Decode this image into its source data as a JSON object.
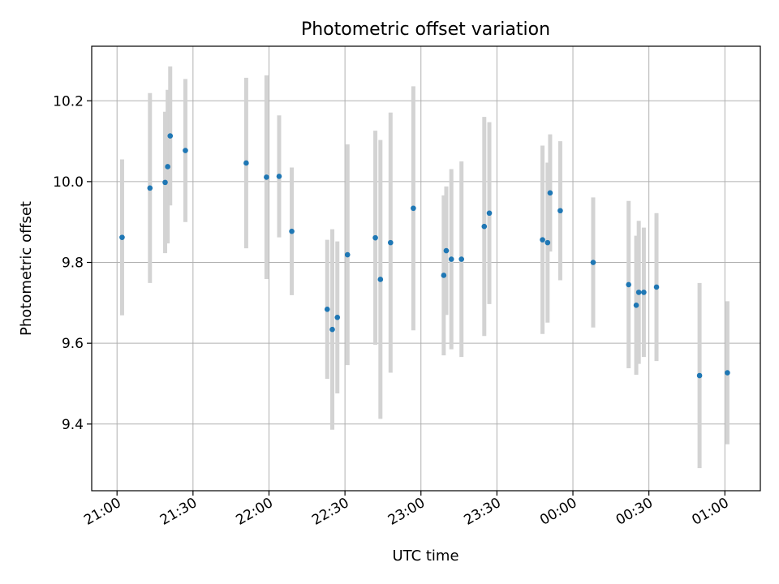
{
  "chart_data": {
    "type": "scatter",
    "title": "Photometric offset variation",
    "xlabel": "UTC time",
    "ylabel": "Photometric offset",
    "x_axis_type": "time",
    "x_range": [
      "20:50",
      "01:14"
    ],
    "x_ticks": [
      "21:00",
      "21:30",
      "22:00",
      "22:30",
      "23:00",
      "23:30",
      "00:00",
      "00:30",
      "01:00"
    ],
    "ylim": [
      9.235,
      10.335
    ],
    "y_ticks": [
      9.4,
      9.6,
      9.8,
      10.0,
      10.2
    ],
    "grid": true,
    "legend": "none",
    "marker_color": "#1f77b4",
    "errorbar_color": "#d3d3d3",
    "points": [
      {
        "time": "21:02",
        "y": 9.862,
        "err": 0.193
      },
      {
        "time": "21:13",
        "y": 9.984,
        "err": 0.235
      },
      {
        "time": "21:19",
        "y": 9.998,
        "err": 0.175
      },
      {
        "time": "21:20",
        "y": 10.037,
        "err": 0.19
      },
      {
        "time": "21:21",
        "y": 10.113,
        "err": 0.172
      },
      {
        "time": "21:27",
        "y": 10.077,
        "err": 0.177
      },
      {
        "time": "21:51",
        "y": 10.046,
        "err": 0.211
      },
      {
        "time": "21:59",
        "y": 10.011,
        "err": 0.252
      },
      {
        "time": "22:04",
        "y": 10.013,
        "err": 0.151
      },
      {
        "time": "22:09",
        "y": 9.877,
        "err": 0.158
      },
      {
        "time": "22:23",
        "y": 9.684,
        "err": 0.172
      },
      {
        "time": "22:25",
        "y": 9.634,
        "err": 0.248
      },
      {
        "time": "22:27",
        "y": 9.664,
        "err": 0.188
      },
      {
        "time": "22:31",
        "y": 9.819,
        "err": 0.273
      },
      {
        "time": "22:42",
        "y": 9.861,
        "err": 0.265
      },
      {
        "time": "22:44",
        "y": 9.758,
        "err": 0.345
      },
      {
        "time": "22:48",
        "y": 9.849,
        "err": 0.322
      },
      {
        "time": "22:57",
        "y": 9.934,
        "err": 0.302
      },
      {
        "time": "23:09",
        "y": 9.768,
        "err": 0.198
      },
      {
        "time": "23:10",
        "y": 9.829,
        "err": 0.159
      },
      {
        "time": "23:12",
        "y": 9.808,
        "err": 0.223
      },
      {
        "time": "23:16",
        "y": 9.808,
        "err": 0.242
      },
      {
        "time": "23:25",
        "y": 9.889,
        "err": 0.271
      },
      {
        "time": "23:27",
        "y": 9.922,
        "err": 0.225
      },
      {
        "time": "23:48",
        "y": 9.856,
        "err": 0.233
      },
      {
        "time": "23:50",
        "y": 9.849,
        "err": 0.198
      },
      {
        "time": "23:51",
        "y": 9.972,
        "err": 0.145
      },
      {
        "time": "23:55",
        "y": 9.928,
        "err": 0.172
      },
      {
        "time": "00:08",
        "y": 9.8,
        "err": 0.161
      },
      {
        "time": "00:22",
        "y": 9.745,
        "err": 0.207
      },
      {
        "time": "00:25",
        "y": 9.694,
        "err": 0.172
      },
      {
        "time": "00:26",
        "y": 9.726,
        "err": 0.177
      },
      {
        "time": "00:28",
        "y": 9.726,
        "err": 0.16
      },
      {
        "time": "00:33",
        "y": 9.739,
        "err": 0.183
      },
      {
        "time": "00:50",
        "y": 9.52,
        "err": 0.229
      },
      {
        "time": "01:01",
        "y": 9.527,
        "err": 0.177
      }
    ]
  }
}
